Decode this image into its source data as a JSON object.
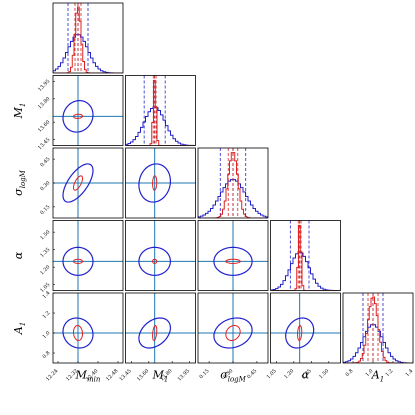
{
  "chart_data": {
    "type": "corner",
    "title": "",
    "parameters": [
      {
        "key": "Mmin",
        "label": "M",
        "sub": "min",
        "range": [
          12.22,
          12.5
        ],
        "ticks": [
          "12.24",
          "12.32",
          "12.40",
          "12.48"
        ],
        "tick_values": [
          12.24,
          12.32,
          12.4,
          12.48
        ],
        "truth": 12.32
      },
      {
        "key": "M1",
        "label": "M",
        "sub": "1",
        "range": [
          13.4,
          14.0
        ],
        "ticks": [
          "13.45",
          "13.60",
          "13.80",
          "13.95"
        ],
        "tick_values": [
          13.45,
          13.6,
          13.8,
          13.95
        ],
        "truth": 13.65
      },
      {
        "key": "sigma",
        "label": "σ",
        "sub": "logM",
        "range": [
          0.08,
          0.52
        ],
        "ticks": [
          "0.15",
          "0.30",
          "0.45",
          "0.60"
        ],
        "tick_values": [
          0.15,
          0.3,
          0.45,
          0.6
        ],
        "x_ticks": [
          "0.15",
          "0.30",
          "0.45",
          "0.60"
        ],
        "x_tick_values": [
          0.15,
          0.3,
          0.45,
          0.6
        ],
        "truth": 0.3
      },
      {
        "key": "alpha",
        "label": "α",
        "sub": "",
        "range": [
          1.0,
          1.6
        ],
        "ticks": [
          "1.05",
          "1.20",
          "1.35",
          "1.50"
        ],
        "tick_values": [
          1.05,
          1.2,
          1.35,
          1.5
        ],
        "truth": 1.25
      },
      {
        "key": "A1",
        "label": "A",
        "sub": "1",
        "range": [
          0.7,
          1.4
        ],
        "ticks": [
          "0.8",
          "1.0",
          "1.2",
          "1.4"
        ],
        "tick_values": [
          0.8,
          1.0,
          1.2,
          1.4
        ],
        "truth": 1.0
      }
    ],
    "series": [
      {
        "color": "#2222cc",
        "sigma": [
          0.04,
          0.09,
          0.08,
          0.08,
          0.1
        ],
        "width": 1.0
      },
      {
        "color": "#dd2222",
        "sigma": [
          0.012,
          0.012,
          0.03,
          0.012,
          0.05
        ],
        "width": 1.0
      }
    ],
    "correlation": [
      [
        1,
        0.1,
        0.65,
        0.0,
        -0.1
      ],
      [
        0.1,
        1,
        0.1,
        0.0,
        0.35
      ],
      [
        0.65,
        0.1,
        1,
        0.0,
        0.2
      ],
      [
        0.0,
        0.0,
        0.0,
        1,
        0.2
      ],
      [
        -0.1,
        0.35,
        0.2,
        0.2,
        1
      ]
    ],
    "truth_color": "#1f77b4",
    "grid": false
  }
}
